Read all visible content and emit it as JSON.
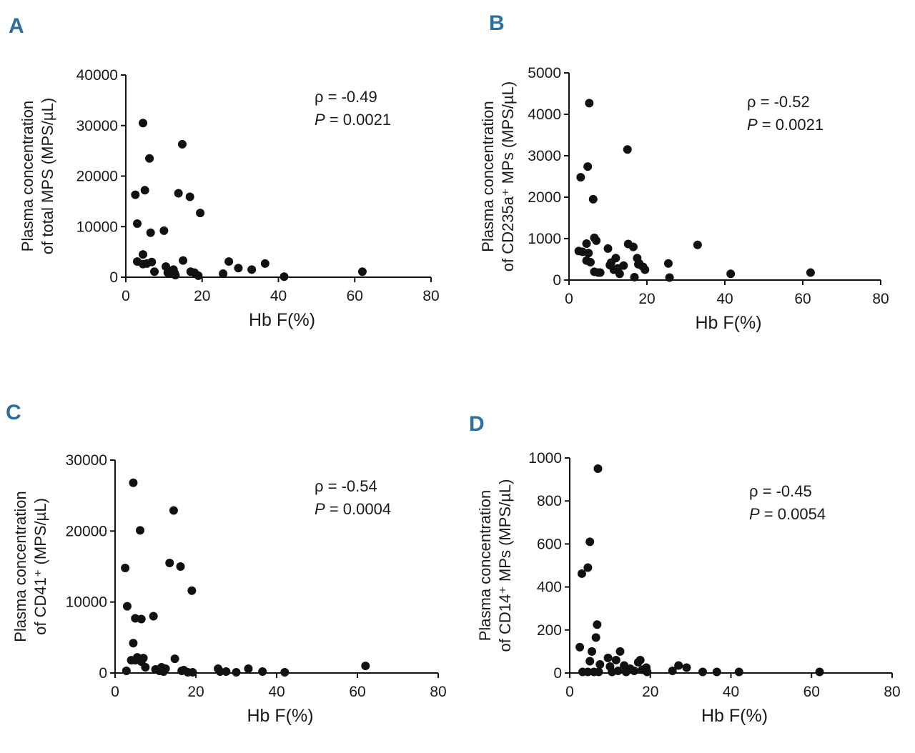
{
  "chart_data": [
    {
      "type": "scatter",
      "panel_label": "A",
      "xlabel": "Hb F(%)",
      "ylabel_line1": "Plasma concentration",
      "ylabel_line2": "of total MPS (MPS/µL)",
      "xlim": [
        0,
        80
      ],
      "ylim": [
        0,
        40000
      ],
      "xticks": [
        0,
        20,
        40,
        60,
        80
      ],
      "yticks": [
        0,
        10000,
        20000,
        30000,
        40000
      ],
      "stat_rho": "ρ = -0.49",
      "stat_p_label": "P",
      "stat_p_value": " = 0.0021",
      "points": [
        [
          2.5,
          16300
        ],
        [
          3.0,
          10600
        ],
        [
          3.0,
          3100
        ],
        [
          4.5,
          30500
        ],
        [
          5.0,
          17200
        ],
        [
          4.5,
          4500
        ],
        [
          4.5,
          2600
        ],
        [
          5.5,
          2700
        ],
        [
          6.2,
          23500
        ],
        [
          6.5,
          8800
        ],
        [
          6.8,
          3000
        ],
        [
          7.5,
          1100
        ],
        [
          10.0,
          9200
        ],
        [
          10.5,
          2100
        ],
        [
          11.0,
          900
        ],
        [
          11.5,
          1200
        ],
        [
          12.0,
          700
        ],
        [
          12.5,
          1500
        ],
        [
          12.8,
          800
        ],
        [
          13.0,
          400
        ],
        [
          13.8,
          16600
        ],
        [
          14.8,
          26300
        ],
        [
          15.0,
          3300
        ],
        [
          16.8,
          15900
        ],
        [
          17.0,
          1100
        ],
        [
          18.0,
          900
        ],
        [
          19.0,
          300
        ],
        [
          19.5,
          12700
        ],
        [
          25.5,
          700
        ],
        [
          27.0,
          3100
        ],
        [
          29.5,
          1800
        ],
        [
          33.0,
          1500
        ],
        [
          36.5,
          2700
        ],
        [
          41.5,
          100
        ],
        [
          62.0,
          1100
        ]
      ]
    },
    {
      "type": "scatter",
      "panel_label": "B",
      "xlabel": "Hb F(%)",
      "ylabel_line1": "Plasma concentration",
      "ylabel_line2": "of CD235a⁺ MPs (MPS/µL)",
      "xlim": [
        0,
        80
      ],
      "ylim": [
        0,
        5000
      ],
      "xticks": [
        0,
        20,
        40,
        60,
        80
      ],
      "yticks": [
        0,
        1000,
        2000,
        3000,
        4000,
        5000
      ],
      "stat_rho": "ρ = -0.52",
      "stat_p_label": "P",
      "stat_p_value": " = 0.0021",
      "points": [
        [
          2.5,
          700
        ],
        [
          3.0,
          2480
        ],
        [
          3.5,
          680
        ],
        [
          4.5,
          880
        ],
        [
          4.5,
          470
        ],
        [
          4.8,
          2740
        ],
        [
          5.0,
          650
        ],
        [
          5.2,
          4270
        ],
        [
          5.5,
          430
        ],
        [
          6.2,
          1950
        ],
        [
          6.5,
          1020
        ],
        [
          6.5,
          200
        ],
        [
          7.0,
          950
        ],
        [
          7.5,
          180
        ],
        [
          8.0,
          180
        ],
        [
          10.0,
          760
        ],
        [
          10.5,
          360
        ],
        [
          10.8,
          420
        ],
        [
          11.5,
          250
        ],
        [
          12.0,
          530
        ],
        [
          12.5,
          280
        ],
        [
          13.0,
          150
        ],
        [
          14.0,
          350
        ],
        [
          15.0,
          3150
        ],
        [
          15.2,
          870
        ],
        [
          16.5,
          800
        ],
        [
          16.8,
          70
        ],
        [
          17.5,
          530
        ],
        [
          17.8,
          380
        ],
        [
          18.0,
          400
        ],
        [
          19.0,
          320
        ],
        [
          19.5,
          250
        ],
        [
          25.5,
          400
        ],
        [
          25.8,
          60
        ],
        [
          33.0,
          850
        ],
        [
          41.5,
          150
        ],
        [
          62.0,
          180
        ]
      ]
    },
    {
      "type": "scatter",
      "panel_label": "C",
      "xlabel": "Hb F(%)",
      "ylabel_line1": "Plasma concentration",
      "ylabel_line2": "of CD41⁺ (MPS/µL)",
      "xlim": [
        0,
        80
      ],
      "ylim": [
        0,
        30000
      ],
      "xticks": [
        0,
        20,
        40,
        60,
        80
      ],
      "yticks": [
        0,
        10000,
        20000,
        30000
      ],
      "stat_rho": "ρ = -0.54",
      "stat_p_label": "P",
      "stat_p_value": " = 0.0004",
      "points": [
        [
          2.5,
          14800
        ],
        [
          2.8,
          300
        ],
        [
          3.0,
          9400
        ],
        [
          4.0,
          1800
        ],
        [
          4.5,
          4200
        ],
        [
          4.5,
          26800
        ],
        [
          5.0,
          7700
        ],
        [
          5.0,
          1800
        ],
        [
          5.5,
          2200
        ],
        [
          6.2,
          20100
        ],
        [
          6.5,
          7600
        ],
        [
          6.5,
          1600
        ],
        [
          7.0,
          2100
        ],
        [
          7.5,
          800
        ],
        [
          9.5,
          8000
        ],
        [
          10.0,
          500
        ],
        [
          11.0,
          300
        ],
        [
          11.5,
          800
        ],
        [
          12.0,
          200
        ],
        [
          12.5,
          600
        ],
        [
          13.5,
          15500
        ],
        [
          14.5,
          22900
        ],
        [
          14.8,
          2000
        ],
        [
          16.2,
          15000
        ],
        [
          16.5,
          300
        ],
        [
          17.0,
          400
        ],
        [
          18.0,
          100
        ],
        [
          19.0,
          11600
        ],
        [
          19.2,
          100
        ],
        [
          25.5,
          600
        ],
        [
          26.0,
          200
        ],
        [
          27.5,
          200
        ],
        [
          30.0,
          100
        ],
        [
          33.0,
          600
        ],
        [
          36.5,
          200
        ],
        [
          42.0,
          100
        ],
        [
          62.0,
          1000
        ]
      ]
    },
    {
      "type": "scatter",
      "panel_label": "D",
      "xlabel": "Hb F(%)",
      "ylabel_line1": "Plasma concentration",
      "ylabel_line2": "of CD14⁺ MPs (MPS/µL)",
      "xlim": [
        0,
        80
      ],
      "ylim": [
        0,
        1000
      ],
      "xticks": [
        0,
        20,
        40,
        60,
        80
      ],
      "yticks": [
        0,
        200,
        400,
        600,
        800,
        1000
      ],
      "stat_rho": "ρ = -0.45",
      "stat_p_label": "P",
      "stat_p_value": " = 0.0054",
      "points": [
        [
          2.5,
          120
        ],
        [
          3.0,
          462
        ],
        [
          3.2,
          5
        ],
        [
          4.5,
          490
        ],
        [
          4.5,
          5
        ],
        [
          5.0,
          610
        ],
        [
          5.0,
          55
        ],
        [
          5.5,
          100
        ],
        [
          6.0,
          5
        ],
        [
          6.5,
          165
        ],
        [
          6.8,
          225
        ],
        [
          7.0,
          950
        ],
        [
          7.2,
          5
        ],
        [
          7.5,
          40
        ],
        [
          9.5,
          70
        ],
        [
          10.0,
          30
        ],
        [
          10.5,
          5
        ],
        [
          11.5,
          60
        ],
        [
          12.0,
          10
        ],
        [
          12.5,
          100
        ],
        [
          13.5,
          35
        ],
        [
          14.0,
          5
        ],
        [
          15.0,
          20
        ],
        [
          16.0,
          10
        ],
        [
          17.0,
          50
        ],
        [
          17.5,
          60
        ],
        [
          18.0,
          15
        ],
        [
          19.0,
          25
        ],
        [
          19.2,
          5
        ],
        [
          25.5,
          10
        ],
        [
          27.0,
          35
        ],
        [
          29.0,
          25
        ],
        [
          33.0,
          5
        ],
        [
          36.5,
          5
        ],
        [
          42.0,
          5
        ],
        [
          62.0,
          5
        ]
      ]
    }
  ]
}
